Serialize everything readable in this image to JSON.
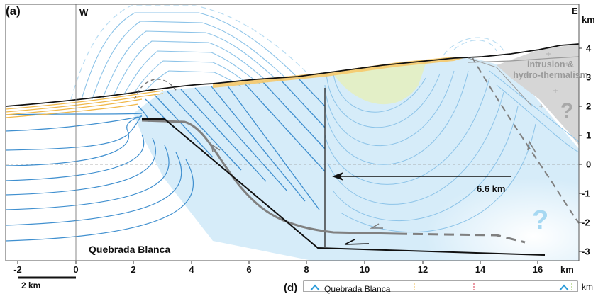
{
  "panel_label": "(a)",
  "direction_west": "W",
  "direction_east": "E",
  "x_axis": {
    "unit": "km",
    "ticks": [
      "-2",
      "0",
      "2",
      "4",
      "6",
      "8",
      "10",
      "12",
      "14",
      "16"
    ]
  },
  "y_axis": {
    "unit": "km",
    "ticks": [
      "4",
      "3",
      "2",
      "1",
      "0",
      "-1",
      "-2",
      "-3"
    ]
  },
  "location_label": "Quebrada Blanca",
  "shortening_label": "6.6 km",
  "intrusion_label": "intrusion & hydro-thermalism",
  "question_mark": "?",
  "scale_bar_label": "2 km",
  "inset": {
    "panel_label": "(d)",
    "title": "Quebrada Blanca",
    "unit": "km"
  },
  "colors": {
    "topography": "#111111",
    "blue_horizons": "#3f8fcf",
    "light_blue_fill": "#cfe9f8",
    "orange_strata": "#f0b84a",
    "green_fill": "#e4efc4",
    "grey_fill": "#d6d6d6",
    "fault": "#111111",
    "grey_fault": "#7a7a7a"
  }
}
